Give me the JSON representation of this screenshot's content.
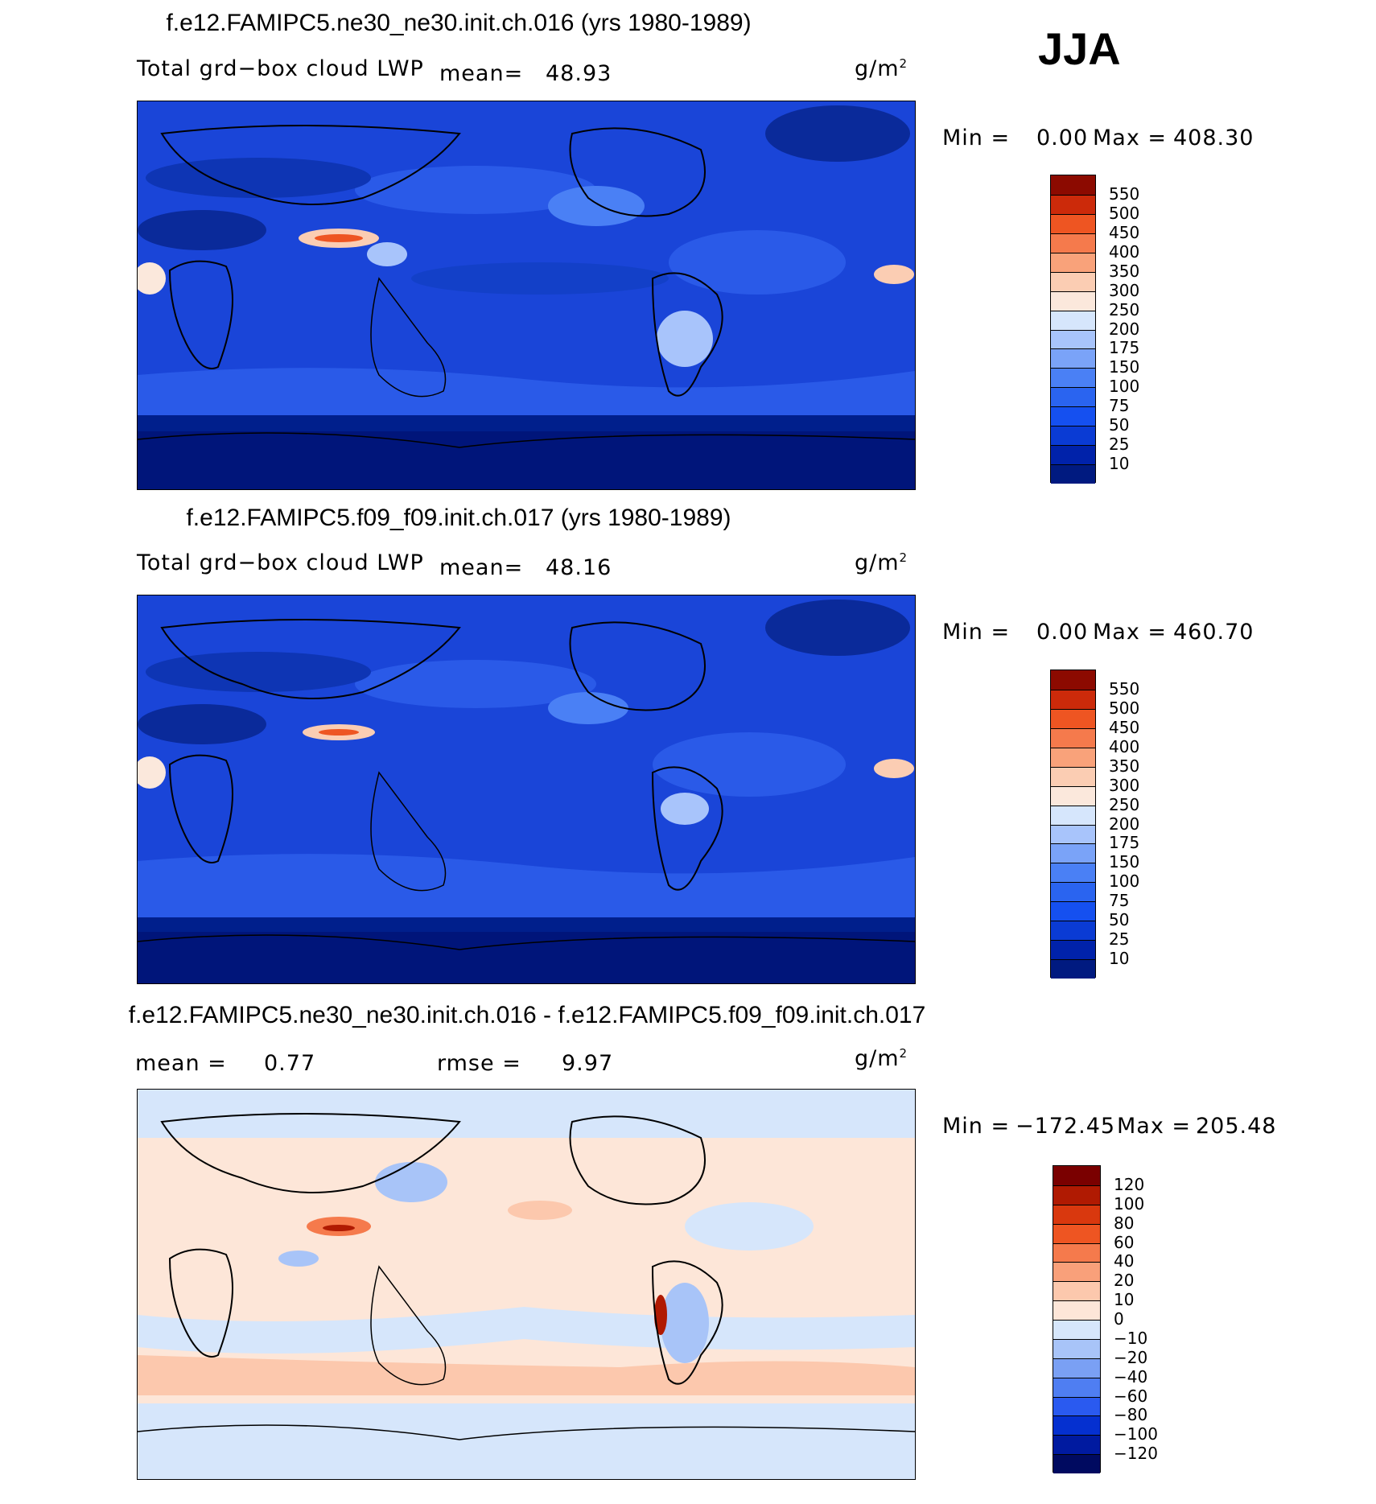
{
  "season": "JJA",
  "units_label": "g/m",
  "units_sup": "2",
  "panels": [
    {
      "title": "f.e12.FAMIPC5.ne30_ne30.init.ch.016 (yrs 1980-1989)",
      "variable": "Total grd−box cloud LWP",
      "mean_label": "mean=",
      "mean_value": "48.93",
      "min_label": "Min =",
      "min_value": "0.00",
      "max_label": "Max =",
      "max_value": "408.30",
      "colors": [
        "#001a80",
        "#0022aa",
        "#0a3bd4",
        "#1550f0",
        "#2a64f0",
        "#4a80f5",
        "#7aa3f8",
        "#a8c4fb",
        "#d6e6fc",
        "#fbe8dc",
        "#fbcdb3",
        "#f9a27a",
        "#f57a4c",
        "#ee5522",
        "#cc2a0a",
        "#8c0a00"
      ],
      "labels": [
        "10",
        "25",
        "50",
        "75",
        "100",
        "150",
        "175",
        "200",
        "250",
        "300",
        "350",
        "400",
        "450",
        "500",
        "550"
      ]
    },
    {
      "title": "f.e12.FAMIPC5.f09_f09.init.ch.017 (yrs 1980-1989)",
      "variable": "Total grd−box cloud LWP",
      "mean_label": "mean=",
      "mean_value": "48.16",
      "min_label": "Min =",
      "min_value": "0.00",
      "max_label": "Max =",
      "max_value": "460.70",
      "colors": [
        "#001a80",
        "#0022aa",
        "#0a3bd4",
        "#1550f0",
        "#2a64f0",
        "#4a80f5",
        "#7aa3f8",
        "#a8c4fb",
        "#d6e6fc",
        "#fbe8dc",
        "#fbcdb3",
        "#f9a27a",
        "#f57a4c",
        "#ee5522",
        "#cc2a0a",
        "#8c0a00"
      ],
      "labels": [
        "10",
        "25",
        "50",
        "75",
        "100",
        "150",
        "175",
        "200",
        "250",
        "300",
        "350",
        "400",
        "450",
        "500",
        "550"
      ]
    },
    {
      "title": "f.e12.FAMIPC5.ne30_ne30.init.ch.016 - f.e12.FAMIPC5.f09_f09.init.ch.017",
      "mean_label": "mean =",
      "mean_value": "0.77",
      "rmse_label": "rmse =",
      "rmse_value": "9.97",
      "min_label": "Min =",
      "min_value": "−172.45",
      "max_label": "Max =",
      "max_value": "205.48",
      "colors": [
        "#000a60",
        "#001aa0",
        "#0530d0",
        "#2a5af0",
        "#4f7ef2",
        "#7aa0f4",
        "#a8c4f8",
        "#d6e6fb",
        "#fde6d8",
        "#fcc8ad",
        "#f9a07a",
        "#f57a4c",
        "#ee5522",
        "#d9380e",
        "#b01a02",
        "#7a0000"
      ],
      "labels": [
        "−120",
        "−100",
        "−80",
        "−60",
        "−40",
        "−20",
        "−10",
        "0",
        "10",
        "20",
        "40",
        "60",
        "80",
        "100",
        "120"
      ]
    }
  ]
}
